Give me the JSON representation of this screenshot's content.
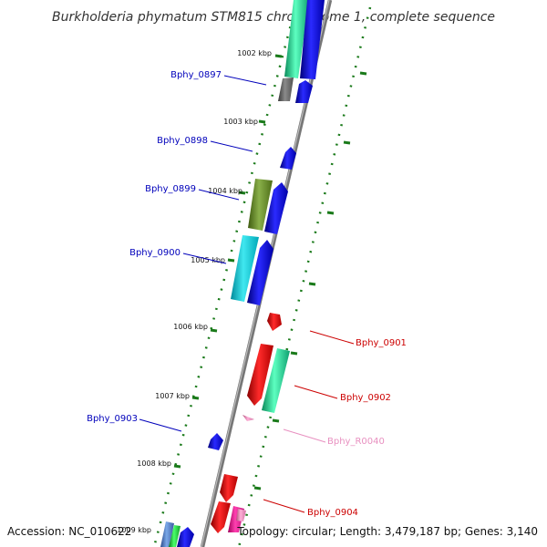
{
  "title": "Burkholderia phymatum STM815 chromosome 1, complete sequence",
  "footer": {
    "accession": "Accession: NC_010622",
    "summary": "Topology: circular; Length: 3,479,187 bp; Genes: 3,140"
  },
  "colors": {
    "backbone": "#888888",
    "tick": "#1a7a1a",
    "label_forward": "#0000bb",
    "label_reverse": "#cc0000",
    "label_rna": "#e890c0"
  },
  "scale_labels": [
    "1002 kbp",
    "1003 kbp",
    "1004 kbp",
    "1005 kbp",
    "1006 kbp",
    "1007 kbp",
    "1008 kbp",
    "1009 kbp"
  ],
  "gene_labels": [
    {
      "text": "Bphy_0897",
      "strand": "forward"
    },
    {
      "text": "Bphy_0898",
      "strand": "forward"
    },
    {
      "text": "Bphy_0899",
      "strand": "forward"
    },
    {
      "text": "Bphy_0900",
      "strand": "forward"
    },
    {
      "text": "Bphy_0901",
      "strand": "reverse"
    },
    {
      "text": "Bphy_0902",
      "strand": "reverse"
    },
    {
      "text": "Bphy_R0040",
      "strand": "rna"
    },
    {
      "text": "Bphy_0903",
      "strand": "forward"
    },
    {
      "text": "Bphy_0904",
      "strand": "reverse"
    }
  ]
}
